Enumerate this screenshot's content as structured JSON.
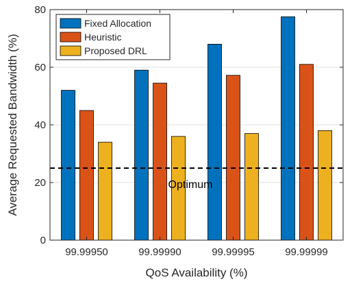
{
  "chart_data": {
    "type": "bar",
    "xlabel": "QoS Availability (%)",
    "ylabel": "Average Requested Bandwidth (%)",
    "categories": [
      "99.99950",
      "99.99990",
      "99.99995",
      "99.99999"
    ],
    "ylim": [
      0,
      80
    ],
    "yticks": [
      0,
      20,
      40,
      60,
      80
    ],
    "grid": true,
    "legend_position": "top-left",
    "series": [
      {
        "name": "Fixed Allocation",
        "color": "#0072BD",
        "values": [
          52,
          59,
          68,
          77.5
        ]
      },
      {
        "name": "Heuristic",
        "color": "#D95319",
        "values": [
          45,
          54.5,
          57.2,
          61
        ]
      },
      {
        "name": "Proposed DRL",
        "color": "#EDB120",
        "values": [
          34,
          36,
          37,
          38
        ]
      }
    ],
    "reference_line": {
      "value": 25,
      "label": "Optimum",
      "style": "dashed",
      "color": "#000000"
    }
  }
}
